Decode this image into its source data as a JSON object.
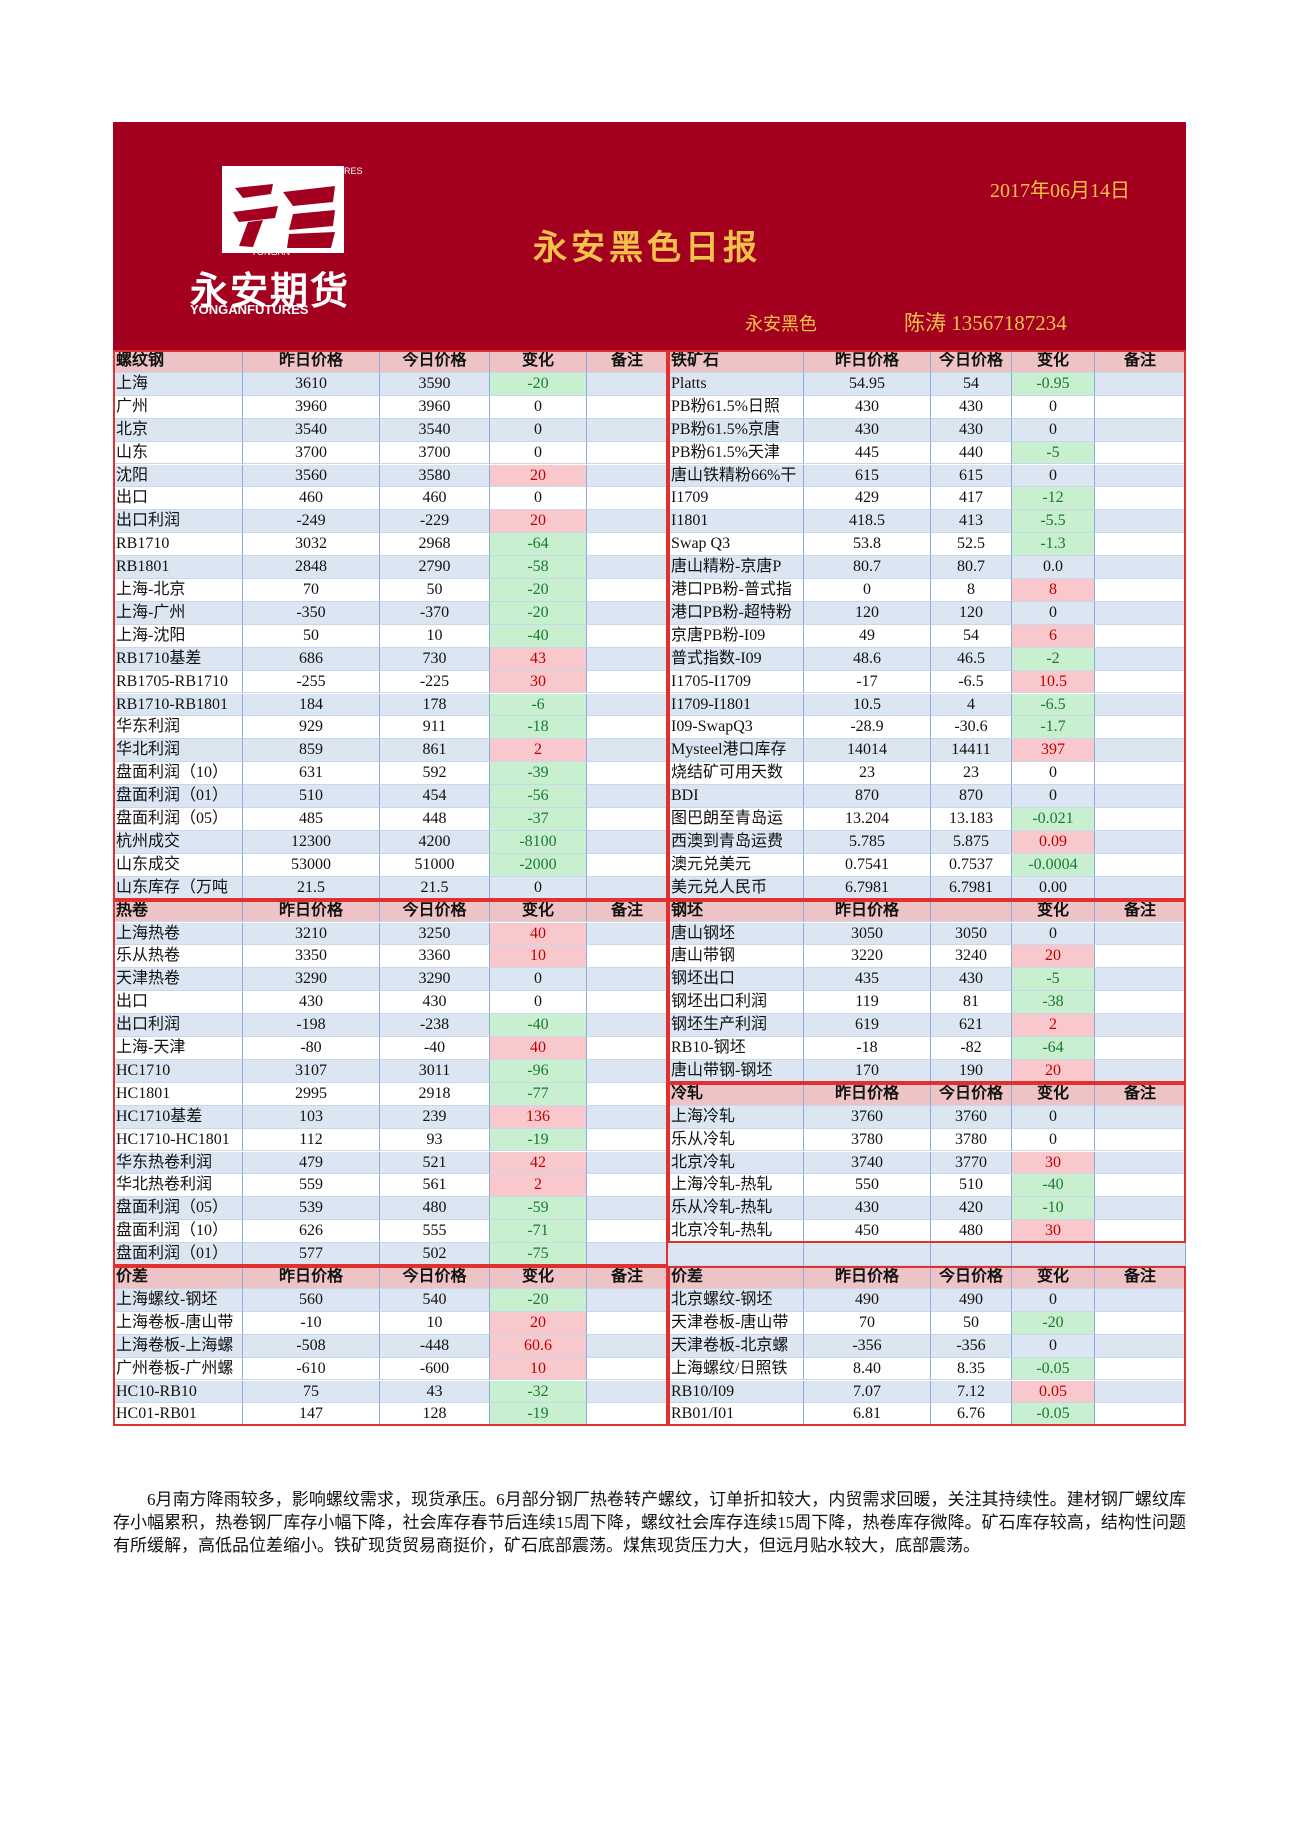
{
  "header": {
    "logo_top": "FUTURES",
    "logo_mid": "YONGAN",
    "logo_name": "永安期货",
    "logo_sub": "YONGANFUTURES",
    "date": "2017年06月14日",
    "title": "永安黑色日报",
    "dept": "永安黑色",
    "author": "陈涛 13567187234"
  },
  "left": [
    {
      "columns": [
        "螺纹钢",
        "昨日价格",
        "今日价格",
        "变化",
        "备注"
      ],
      "rows": [
        [
          "上海",
          "3610",
          "3590",
          "-20"
        ],
        [
          "广州",
          "3960",
          "3960",
          "0"
        ],
        [
          "北京",
          "3540",
          "3540",
          "0"
        ],
        [
          "山东",
          "3700",
          "3700",
          "0"
        ],
        [
          "沈阳",
          "3560",
          "3580",
          "20"
        ],
        [
          "出口",
          "460",
          "460",
          "0"
        ],
        [
          "出口利润",
          "-249",
          "-229",
          "20"
        ],
        [
          "RB1710",
          "3032",
          "2968",
          "-64"
        ],
        [
          "RB1801",
          "2848",
          "2790",
          "-58"
        ],
        [
          "上海-北京",
          "70",
          "50",
          "-20"
        ],
        [
          "上海-广州",
          "-350",
          "-370",
          "-20"
        ],
        [
          "上海-沈阳",
          "50",
          "10",
          "-40"
        ],
        [
          "RB1710基差",
          "686",
          "730",
          "43"
        ],
        [
          "RB1705-RB1710",
          "-255",
          "-225",
          "30"
        ],
        [
          "RB1710-RB1801",
          "184",
          "178",
          "-6"
        ],
        [
          "华东利润",
          "929",
          "911",
          "-18"
        ],
        [
          "华北利润",
          "859",
          "861",
          "2"
        ],
        [
          "盘面利润（10）",
          "631",
          "592",
          "-39"
        ],
        [
          "盘面利润（01）",
          "510",
          "454",
          "-56"
        ],
        [
          "盘面利润（05）",
          "485",
          "448",
          "-37"
        ],
        [
          "杭州成交",
          "12300",
          "4200",
          "-8100"
        ],
        [
          "山东成交",
          "53000",
          "51000",
          "-2000"
        ],
        [
          "山东库存（万吨",
          "21.5",
          "21.5",
          "0"
        ]
      ]
    },
    {
      "columns": [
        "热卷",
        "昨日价格",
        "今日价格",
        "变化",
        "备注"
      ],
      "rows": [
        [
          "上海热卷",
          "3210",
          "3250",
          "40"
        ],
        [
          "乐从热卷",
          "3350",
          "3360",
          "10"
        ],
        [
          "天津热卷",
          "3290",
          "3290",
          "0"
        ],
        [
          "出口",
          "430",
          "430",
          "0"
        ],
        [
          "出口利润",
          "-198",
          "-238",
          "-40"
        ],
        [
          "上海-天津",
          "-80",
          "-40",
          "40"
        ],
        [
          "HC1710",
          "3107",
          "3011",
          "-96"
        ],
        [
          "HC1801",
          "2995",
          "2918",
          "-77"
        ],
        [
          "HC1710基差",
          "103",
          "239",
          "136"
        ],
        [
          "HC1710-HC1801",
          "112",
          "93",
          "-19"
        ],
        [
          "华东热卷利润",
          "479",
          "521",
          "42"
        ],
        [
          "华北热卷利润",
          "559",
          "561",
          "2"
        ],
        [
          "盘面利润（05）",
          "539",
          "480",
          "-59"
        ],
        [
          "盘面利润（10）",
          "626",
          "555",
          "-71"
        ],
        [
          "盘面利润（01）",
          "577",
          "502",
          "-75"
        ]
      ]
    },
    {
      "columns": [
        "价差",
        "昨日价格",
        "今日价格",
        "变化",
        "备注"
      ],
      "rows": [
        [
          "上海螺纹-钢坯",
          "560",
          "540",
          "-20"
        ],
        [
          "上海卷板-唐山带",
          "-10",
          "10",
          "20"
        ],
        [
          "上海卷板-上海螺",
          "-508",
          "-448",
          "60.6"
        ],
        [
          "广州卷板-广州螺",
          "-610",
          "-600",
          "10"
        ],
        [
          "HC10-RB10",
          "75",
          "43",
          "-32"
        ],
        [
          "HC01-RB01",
          "147",
          "128",
          "-19"
        ]
      ]
    }
  ],
  "right": [
    {
      "columns": [
        "铁矿石",
        "昨日价格",
        "今日价格",
        "变化",
        "备注"
      ],
      "rows": [
        [
          "Platts",
          "54.95",
          "54",
          "-0.95"
        ],
        [
          "PB粉61.5%日照",
          "430",
          "430",
          "0"
        ],
        [
          "PB粉61.5%京唐",
          "430",
          "430",
          "0"
        ],
        [
          "PB粉61.5%天津",
          "445",
          "440",
          "-5"
        ],
        [
          "唐山铁精粉66%干",
          "615",
          "615",
          "0"
        ],
        [
          "I1709",
          "429",
          "417",
          "-12"
        ],
        [
          "I1801",
          "418.5",
          "413",
          "-5.5"
        ],
        [
          "Swap Q3",
          "53.8",
          "52.5",
          "-1.3"
        ],
        [
          "唐山精粉-京唐P",
          "80.7",
          "80.7",
          "0.0"
        ],
        [
          "港口PB粉-普式指",
          "0",
          "8",
          "8"
        ],
        [
          "港口PB粉-超特粉",
          "120",
          "120",
          "0"
        ],
        [
          "京唐PB粉-I09",
          "49",
          "54",
          "6"
        ],
        [
          "普式指数-I09",
          "48.6",
          "46.5",
          "-2"
        ],
        [
          "I1705-I1709",
          "-17",
          "-6.5",
          "10.5"
        ],
        [
          "I1709-I1801",
          "10.5",
          "4",
          "-6.5"
        ],
        [
          "I09-SwapQ3",
          "-28.9",
          "-30.6",
          "-1.7"
        ],
        [
          "Mysteel港口库存",
          "14014",
          "14411",
          "397"
        ],
        [
          "烧结矿可用天数",
          "23",
          "23",
          "0"
        ],
        [
          "BDI",
          "870",
          "870",
          "0"
        ],
        [
          "图巴朗至青岛运",
          "13.204",
          "13.183",
          "-0.021"
        ],
        [
          "西澳到青岛运费",
          "5.785",
          "5.875",
          "0.09"
        ],
        [
          "澳元兑美元",
          "0.7541",
          "0.7537",
          "-0.0004"
        ],
        [
          "美元兑人民币",
          "6.7981",
          "6.7981",
          "0.00"
        ]
      ]
    },
    {
      "columns": [
        "钢坯",
        "昨日价格",
        null,
        "变化",
        "备注"
      ],
      "rows": [
        [
          "唐山钢坯",
          "3050",
          "3050",
          "0"
        ],
        [
          "唐山带钢",
          "3220",
          "3240",
          "20"
        ],
        [
          "钢坯出口",
          "435",
          "430",
          "-5"
        ],
        [
          "钢坯出口利润",
          "119",
          "81",
          "-38"
        ],
        [
          "钢坯生产利润",
          "619",
          "621",
          "2"
        ],
        [
          "RB10-钢坯",
          "-18",
          "-82",
          "-64"
        ],
        [
          "唐山带钢-钢坯",
          "170",
          "190",
          "20"
        ]
      ]
    },
    {
      "columns": [
        "冷轧",
        "昨日价格",
        "今日价格",
        "变化",
        "备注"
      ],
      "rows": [
        [
          "上海冷轧",
          "3760",
          "3760",
          "0"
        ],
        [
          "乐从冷轧",
          "3780",
          "3780",
          "0"
        ],
        [
          "北京冷轧",
          "3740",
          "3770",
          "30"
        ],
        [
          "上海冷轧-热轧",
          "550",
          "510",
          "-40"
        ],
        [
          "乐从冷轧-热轧",
          "430",
          "420",
          "-10"
        ],
        [
          "北京冷轧-热轧",
          "450",
          "480",
          "30"
        ]
      ]
    },
    {
      "columns": [
        "价差",
        "昨日价格",
        "今日价格",
        "变化",
        "备注"
      ],
      "rows": [
        [
          "北京螺纹-钢坯",
          "490",
          "490",
          "0"
        ],
        [
          "天津卷板-唐山带",
          "70",
          "50",
          "-20"
        ],
        [
          "天津卷板-北京螺",
          "-356",
          "-356",
          "0"
        ],
        [
          "上海螺纹/日照铁",
          "8.40",
          "8.35",
          "-0.05"
        ],
        [
          "RB10/I09",
          "7.07",
          "7.12",
          "0.05"
        ],
        [
          "RB01/I01",
          "6.81",
          "6.76",
          "-0.05"
        ]
      ]
    }
  ],
  "commentary": "6月南方降雨较多，影响螺纹需求，现货承压。6月部分钢厂热卷转产螺纹，订单折扣较大，内贸需求回暖，关注其持续性。建材钢厂螺纹库存小幅累积，热卷钢厂库存小幅下降，社会库存春节后连续15周下降，螺纹社会库存连续15周下降，热卷库存微降。矿石库存较高，结构性问题有所缓解，高低品位差缩小。铁矿现货贸易商挺价，矿石底部震荡。煤焦现货压力大，但远月贴水较大，底部震荡。"
}
